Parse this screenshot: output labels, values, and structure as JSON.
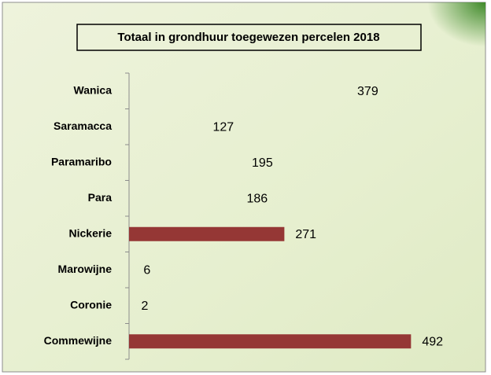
{
  "chart_data": {
    "type": "bar",
    "orientation": "horizontal",
    "title": "Totaal in grondhuur toegewezen percelen 2018",
    "categories": [
      "Wanica",
      "Saramacca",
      "Paramaribo",
      "Para",
      "Nickerie",
      "Marowijne",
      "Coronie",
      "Commewijne"
    ],
    "values": [
      379,
      127,
      195,
      186,
      271,
      6,
      2,
      492
    ],
    "colors": [
      "transparent",
      "transparent",
      "transparent",
      "transparent",
      "#953735",
      "transparent",
      "transparent",
      "#953735"
    ],
    "xlim": [
      0,
      600
    ]
  }
}
